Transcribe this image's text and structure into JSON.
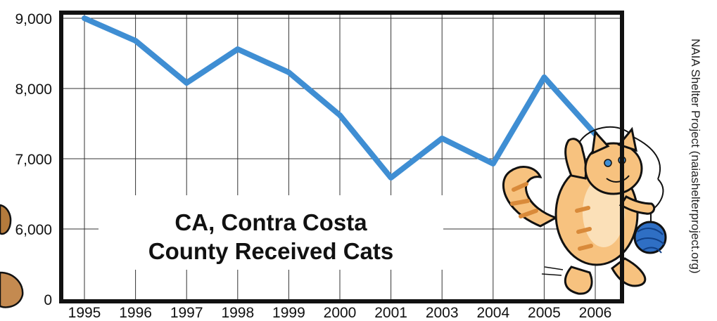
{
  "chart_data": {
    "type": "line",
    "title_lines": [
      "CA, Contra Costa",
      "County Received Cats"
    ],
    "x": [
      "1995",
      "1996",
      "1997",
      "1998",
      "1999",
      "2000",
      "2001",
      "2003",
      "2004",
      "2005",
      "2006"
    ],
    "series": [
      {
        "values": [
          9000,
          8680,
          8080,
          8560,
          8230,
          7620,
          6730,
          7290,
          6930,
          8160,
          7350
        ]
      }
    ],
    "y_ticks": [
      "9,000",
      "8,000",
      "7,000",
      "6,000",
      "0"
    ],
    "y_tick_values": [
      9000,
      8000,
      7000,
      6000,
      5000
    ],
    "ylim": [
      5000,
      9000
    ],
    "y_axis_break": "values below 6,000 compressed; bottom tick labeled 0",
    "grid": "vertical lines at each year, horizontal lines at each y tick",
    "line_color": "#3f8ed3"
  },
  "source": "NAIA Shelter Project (naiashelterproject.org)",
  "colors": {
    "frame": "#111111",
    "grid": "#333333",
    "cat_fur": "#f7c27f",
    "cat_stripe": "#d98a3a",
    "yarn": "#2f6fc4"
  }
}
